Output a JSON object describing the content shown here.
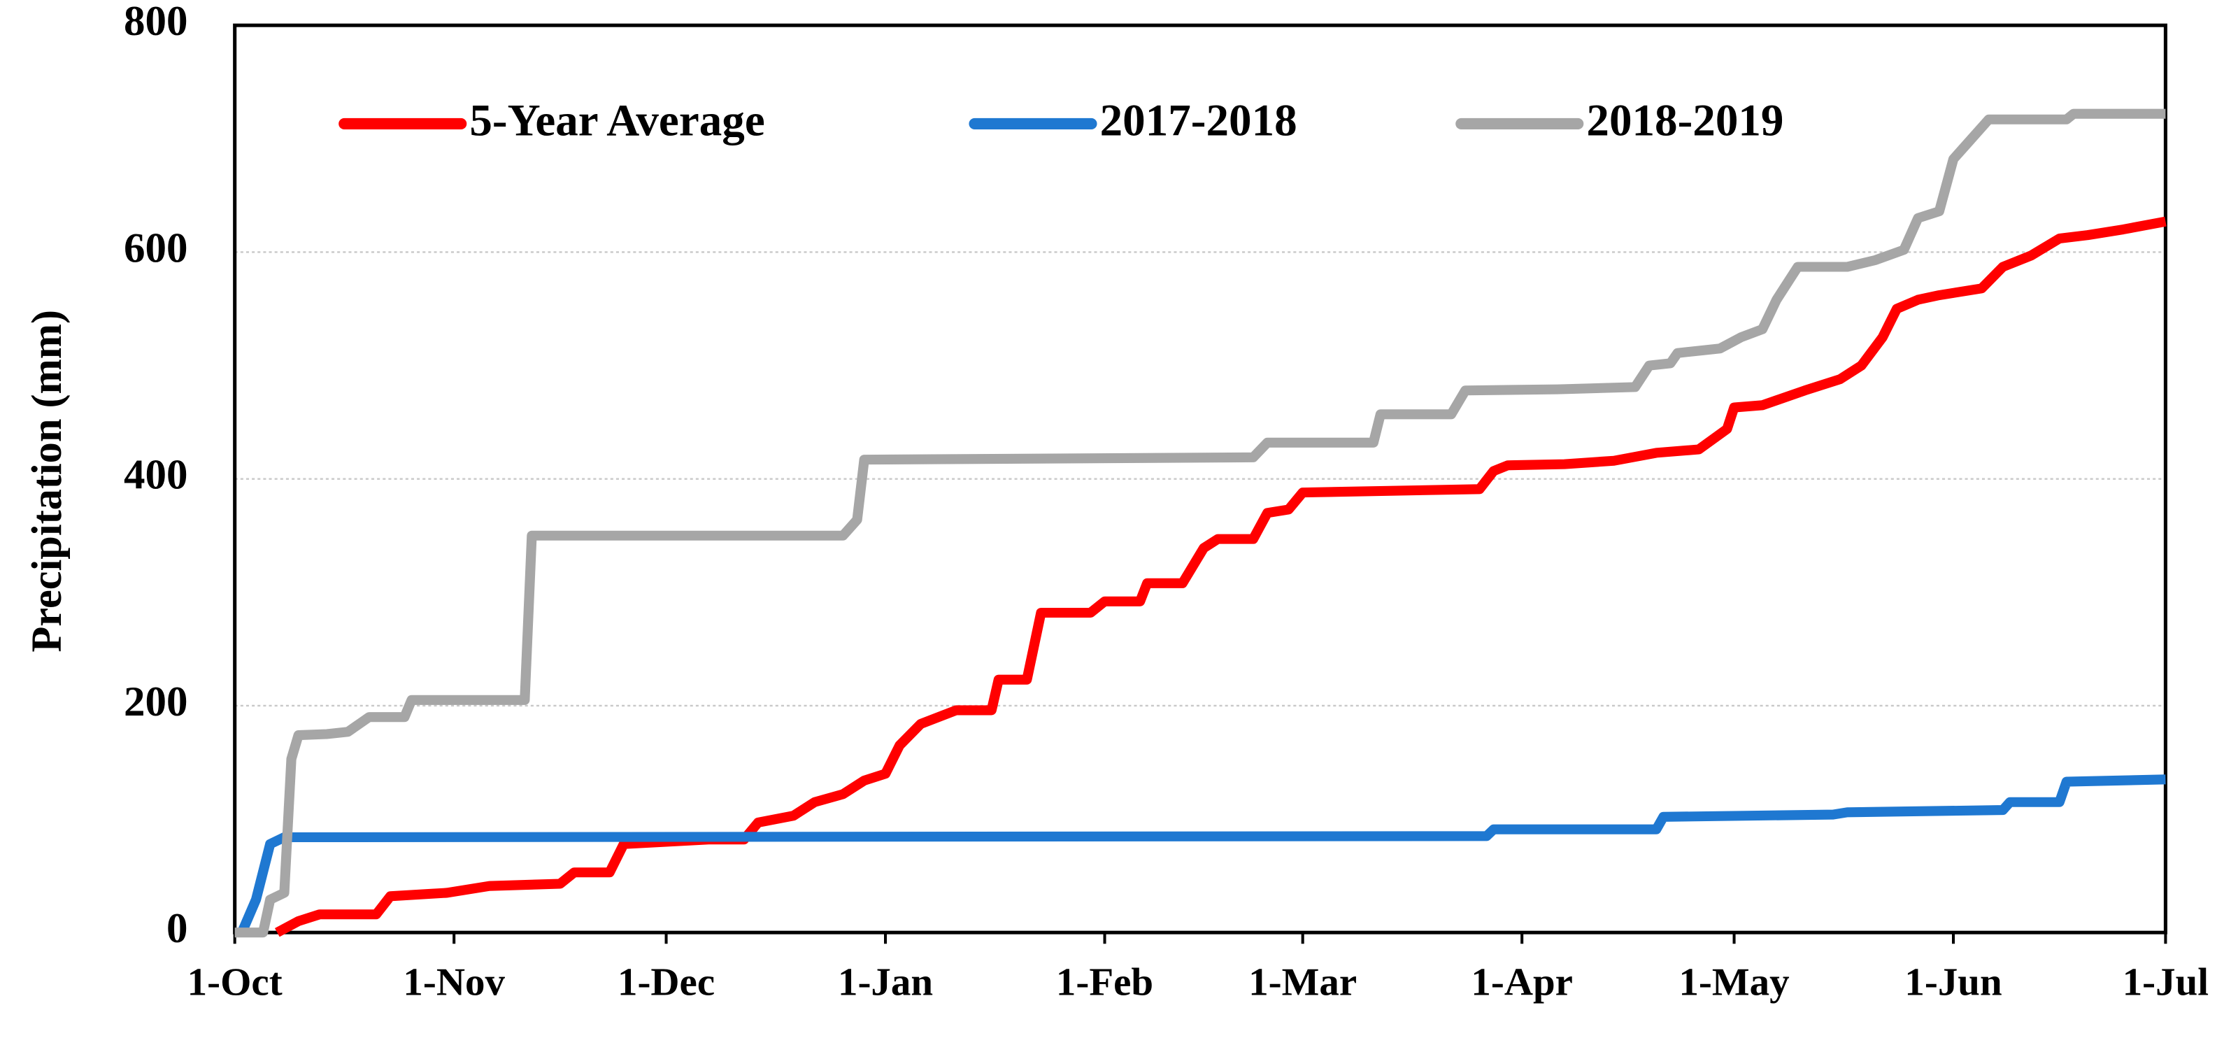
{
  "chart_data": {
    "type": "line",
    "y_label": "Precipitation (mm)",
    "xlim": [
      0,
      273
    ],
    "xticks": [
      {
        "value": 0,
        "label": "1-Oct"
      },
      {
        "value": 31,
        "label": "1-Nov"
      },
      {
        "value": 61,
        "label": "1-Dec"
      },
      {
        "value": 92,
        "label": "1-Jan"
      },
      {
        "value": 123,
        "label": "1-Feb"
      },
      {
        "value": 151,
        "label": "1-Mar"
      },
      {
        "value": 182,
        "label": "1-Apr"
      },
      {
        "value": 212,
        "label": "1-May"
      },
      {
        "value": 243,
        "label": "1-Jun"
      },
      {
        "value": 273,
        "label": "1-Jul"
      }
    ],
    "ylim": [
      0,
      800
    ],
    "yticks": [
      0,
      200,
      400,
      600,
      800
    ],
    "grid": true,
    "legend": "top",
    "series": [
      {
        "name": "5-Year Average",
        "color": "#ff0000",
        "x": [
          6,
          9,
          12,
          20,
          22,
          30,
          36,
          46,
          48,
          53,
          55,
          67,
          72,
          74,
          79,
          82,
          86,
          89,
          92,
          94,
          97,
          102,
          107,
          108,
          112,
          114,
          121,
          123,
          128,
          129,
          134,
          137,
          139,
          144,
          146,
          149,
          151,
          176,
          178,
          180,
          188,
          195,
          201,
          207,
          211,
          212,
          216,
          222,
          227,
          230,
          233,
          235,
          238,
          241,
          247,
          250,
          254,
          258,
          262,
          267,
          273
        ],
        "values": [
          0,
          10,
          16,
          16,
          32,
          35,
          41,
          43,
          53,
          53,
          78,
          82,
          82,
          97,
          103,
          115,
          122,
          134,
          140,
          165,
          184,
          196,
          196,
          223,
          223,
          282,
          282,
          292,
          292,
          308,
          308,
          339,
          347,
          347,
          370,
          373,
          388,
          391,
          407,
          412,
          413,
          416,
          423,
          426,
          444,
          463,
          465,
          478,
          488,
          500,
          525,
          550,
          558,
          562,
          568,
          587,
          597,
          612,
          615,
          620,
          627
        ]
      },
      {
        "name": "2017-2018",
        "color": "#1f78d1",
        "x": [
          1,
          3,
          5,
          7,
          177,
          178,
          201,
          202,
          226,
          228,
          250,
          251,
          258,
          259,
          273
        ],
        "values": [
          0,
          29,
          78,
          84,
          85,
          91,
          91,
          102,
          104,
          106,
          108,
          115,
          115,
          133,
          135
        ]
      },
      {
        "name": "2018-2019",
        "color": "#a6a6a6",
        "x": [
          0,
          4,
          5,
          7,
          8,
          9,
          13,
          16,
          19,
          24,
          25,
          41,
          42,
          86,
          88,
          89,
          144,
          146,
          161,
          162,
          172,
          174,
          187,
          198,
          200,
          203,
          204,
          210,
          213,
          216,
          218,
          221,
          228,
          232,
          236,
          238,
          241,
          243,
          245,
          248,
          259,
          260,
          273
        ],
        "values": [
          0,
          0,
          29,
          35,
          153,
          174,
          175,
          177,
          190,
          190,
          205,
          205,
          350,
          350,
          364,
          417,
          419,
          432,
          432,
          457,
          457,
          478,
          479,
          481,
          500,
          502,
          511,
          515,
          525,
          532,
          558,
          587,
          587,
          593,
          602,
          630,
          636,
          682,
          696,
          717,
          717,
          722,
          722
        ]
      }
    ]
  }
}
